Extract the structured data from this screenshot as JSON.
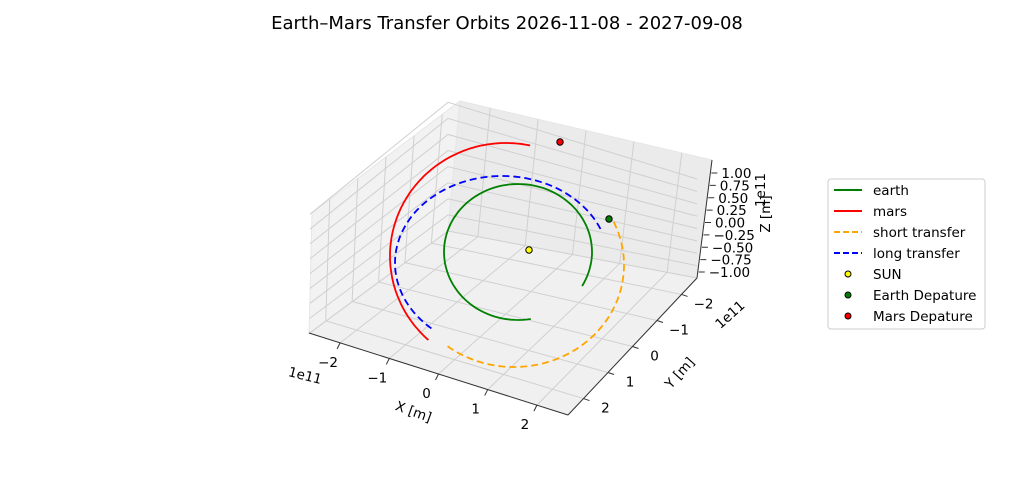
{
  "chart_data": {
    "type": "line",
    "title": "Earth–Mars Transfer Orbits 2026-11-08 - 2027-09-08",
    "xlabel": "X [m]",
    "ylabel": "Y [m]",
    "zlabel": "Z [m]",
    "x_offset_text": "1e11",
    "y_offset_text": "1e11",
    "z_offset_text": "1e11",
    "x_ticks": [
      "−2",
      "−1",
      "0",
      "1",
      "2"
    ],
    "y_ticks": [
      "−2",
      "−1",
      "0",
      "1",
      "2"
    ],
    "z_ticks": [
      "−1.00",
      "−0.75",
      "−0.50",
      "−0.25",
      "0.00",
      "0.25",
      "0.50",
      "0.75",
      "1.00"
    ],
    "grid": true,
    "legend_position": "right",
    "series": [
      {
        "name": "earth",
        "color": "#008000",
        "style": "solid"
      },
      {
        "name": "mars",
        "color": "#ff0000",
        "style": "solid"
      },
      {
        "name": "short transfer",
        "color": "#ffa500",
        "style": "dashed"
      },
      {
        "name": "long transfer",
        "color": "#0000ff",
        "style": "dashed"
      }
    ],
    "points": [
      {
        "name": "SUN",
        "color": "#ffff00"
      },
      {
        "name": "Earth Depature",
        "color": "#008000"
      },
      {
        "name": "Mars Depature",
        "color": "#ff0000"
      }
    ]
  }
}
